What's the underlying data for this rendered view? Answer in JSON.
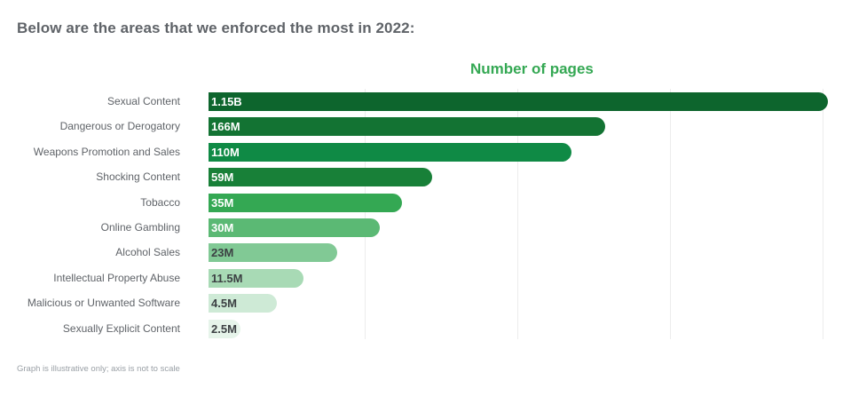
{
  "heading": "Below are the areas that we enforced the most in 2022:",
  "footnote": "Graph is illustrative only; axis is not to scale",
  "chart_data": {
    "type": "bar",
    "orientation": "horizontal",
    "title": "Number of pages",
    "xlabel": "Number of pages",
    "ylabel": "",
    "grid": true,
    "categories": [
      "Sexual Content",
      "Dangerous or Derogatory",
      "Weapons Promotion and Sales",
      "Shocking Content",
      "Tobacco",
      "Online Gambling",
      "Alcohol Sales",
      "Intellectual Property Abuse",
      "Malicious or Unwanted Software",
      "Sexually Explicit Content"
    ],
    "values": [
      1150000000,
      166000000,
      110000000,
      59000000,
      35000000,
      30000000,
      23000000,
      11500000,
      4500000,
      2500000
    ],
    "value_labels": [
      "1.15B",
      "166M",
      "110M",
      "59M",
      "35M",
      "30M",
      "23M",
      "11.5M",
      "4.5M",
      "2.5M"
    ],
    "illustrative_fill": [
      1.0,
      0.641,
      0.586,
      0.361,
      0.312,
      0.277,
      0.208,
      0.153,
      0.111,
      0.052
    ],
    "colors": [
      "#0d652d",
      "#137333",
      "#0f8a45",
      "#188038",
      "#34a853",
      "#5bb974",
      "#81c995",
      "#a8dab5",
      "#ceead6",
      "#e6f4ea"
    ],
    "value_label_colors": [
      "#ffffff",
      "#ffffff",
      "#ffffff",
      "#ffffff",
      "#ffffff",
      "#ffffff",
      "#3c4043",
      "#3c4043",
      "#3c4043",
      "#3c4043"
    ],
    "note": "Graph is illustrative only; axis is not to scale"
  }
}
